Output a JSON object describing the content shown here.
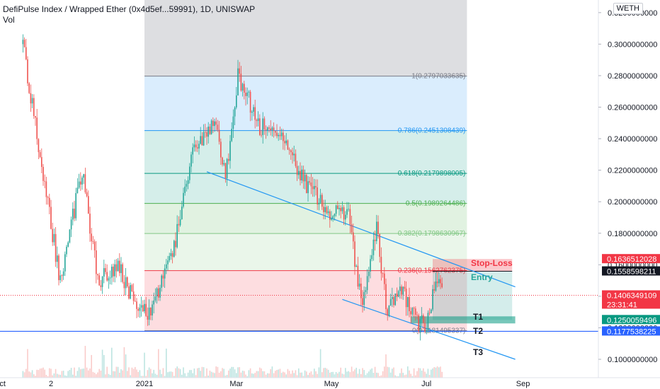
{
  "header": {
    "title": "DefiPulse Index / Wrapped Ether (0x4d5ef...59991), 1D, UNISWAP",
    "volume_label": "Vol",
    "quote_badge": "WETH"
  },
  "colors": {
    "up": "#26a69a",
    "down": "#ef5350",
    "trendline": "#2196f3",
    "fib_1": "#787b86",
    "fib_786": "#2196f3",
    "fib_618": "#089981",
    "fib_5": "#4caf50",
    "fib_382": "#81c784",
    "fib_236": "#f23645",
    "stop_loss": "#f23645",
    "entry": "#26a69a",
    "target": "#089981",
    "last_price": "#f23645",
    "support": "#2962ff"
  },
  "chart_data": {
    "type": "candlestick",
    "xlabel": "",
    "ylabel": "",
    "ylim": [
      0.092,
      0.324
    ],
    "y_scale": "linear",
    "grid": false,
    "y_ticks": [
      "0.1000000000",
      "0.1200000000",
      "0.1400000000",
      "0.1600000000",
      "0.1800000000",
      "0.2000000000",
      "0.2200000000",
      "0.2400000000",
      "0.2600000000",
      "0.2800000000",
      "0.3000000000",
      "0.3200000000"
    ],
    "x_ticks": [
      "Oct",
      "2",
      "2021",
      "Mar",
      "May",
      "Jul",
      "Sep"
    ],
    "price_path": [
      {
        "x": "2020-10-15",
        "y": 0.3
      },
      {
        "x": "2020-10-28",
        "y": 0.215
      },
      {
        "x": "2020-11-08",
        "y": 0.15
      },
      {
        "x": "2020-11-22",
        "y": 0.22
      },
      {
        "x": "2020-12-02",
        "y": 0.15
      },
      {
        "x": "2020-12-15",
        "y": 0.16
      },
      {
        "x": "2020-12-24",
        "y": 0.14
      },
      {
        "x": "2021-01-04",
        "y": 0.128
      },
      {
        "x": "2021-01-18",
        "y": 0.162
      },
      {
        "x": "2021-02-01",
        "y": 0.232
      },
      {
        "x": "2021-02-15",
        "y": 0.25
      },
      {
        "x": "2021-02-22",
        "y": 0.214
      },
      {
        "x": "2021-03-02",
        "y": 0.28
      },
      {
        "x": "2021-03-16",
        "y": 0.248
      },
      {
        "x": "2021-03-30",
        "y": 0.24
      },
      {
        "x": "2021-04-14",
        "y": 0.212
      },
      {
        "x": "2021-04-28",
        "y": 0.195
      },
      {
        "x": "2021-05-12",
        "y": 0.19
      },
      {
        "x": "2021-05-21",
        "y": 0.132
      },
      {
        "x": "2021-05-30",
        "y": 0.182
      },
      {
        "x": "2021-06-06",
        "y": 0.13
      },
      {
        "x": "2021-06-15",
        "y": 0.145
      },
      {
        "x": "2021-06-24",
        "y": 0.125
      },
      {
        "x": "2021-07-01",
        "y": 0.12
      },
      {
        "x": "2021-07-07",
        "y": 0.1535
      },
      {
        "x": "2021-07-12",
        "y": 0.1406
      }
    ],
    "fib_levels": [
      {
        "ratio": "1",
        "value": 0.2797033635,
        "label": "1(0.2797033635)"
      },
      {
        "ratio": "0.786",
        "value": 0.2451308439,
        "label": "0.786(0.2451308439)"
      },
      {
        "ratio": "0.618",
        "value": 0.2179898005,
        "label": "0.618(0.2179898005)"
      },
      {
        "ratio": "0.5",
        "value": 0.1989264486,
        "label": "0.5(0.1989264486)"
      },
      {
        "ratio": "0.382",
        "value": 0.1798630967,
        "label": "0.382(0.1798630967)"
      },
      {
        "ratio": "0.236",
        "value": 0.1562762375,
        "label": "0.236(0.1562762375)"
      },
      {
        "ratio": "0",
        "value": 0.1181495337,
        "label": "0(0.1181495337)"
      }
    ],
    "fib_start": "2021-01-01",
    "fib_end": "2021-07-27",
    "trade": {
      "start": "2021-07-05",
      "end": "2021-08-25",
      "stop_loss": 0.1636512028,
      "entry": 0.1558598211,
      "target": 0.1250059496,
      "labels": {
        "stop_loss": "Stop-Loss",
        "entry": "Entry",
        "t1": "T1",
        "t2": "T2",
        "t3": "T3"
      }
    },
    "channel_upper": [
      {
        "x": "2021-02-10",
        "y": 0.219
      },
      {
        "x": "2021-08-27",
        "y": 0.146
      }
    ],
    "channel_lower": [
      {
        "x": "2021-05-08",
        "y": 0.138
      },
      {
        "x": "2021-08-27",
        "y": 0.1
      }
    ],
    "support_level": 0.1177538225
  },
  "price_axis_tags": [
    {
      "text": "0.1636512028",
      "value": 0.1636512028,
      "color": "#f23645"
    },
    {
      "text": "0.1558598211",
      "value": 0.1558598211,
      "color": "#131722"
    },
    {
      "text": "0.1406349109",
      "sub": "23:31:41",
      "value": 0.1406349109,
      "color": "#f23645"
    },
    {
      "text": "0.1250059496",
      "value": 0.1250059496,
      "color": "#089981"
    },
    {
      "text": "0.1177538225",
      "value": 0.1177538225,
      "color": "#2962ff"
    }
  ]
}
